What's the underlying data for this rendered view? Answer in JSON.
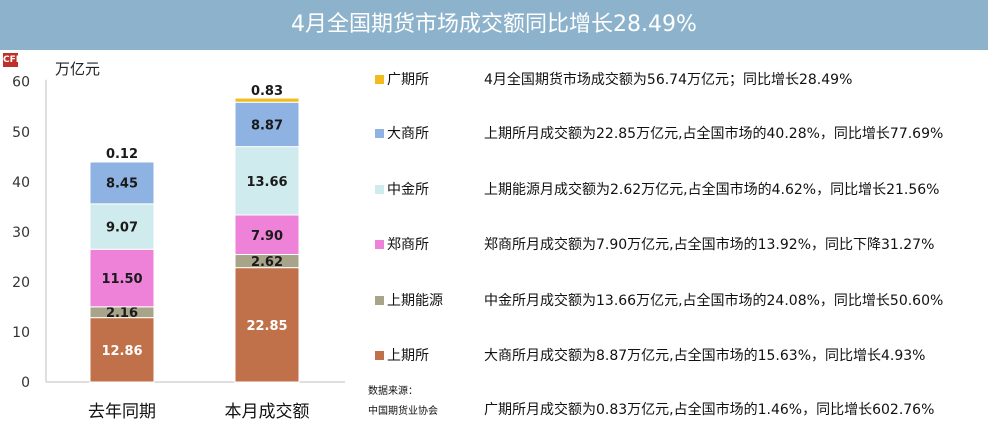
{
  "title": "4月全国期货市场成交额同比增长28.49%",
  "logo_text": "CFI",
  "unit": "万亿元",
  "source": {
    "line1": "数据来源：",
    "line2": "中国期货业协会"
  },
  "notes": [
    "4月全国期货市场成交额为56.74万亿元；同比增长28.49%",
    "上期所月成交额为22.85万亿元,占全国市场的40.28%，同比增长77.69%",
    "上期能源月成交额为2.62万亿元,占全国市场的4.62%，同比增长21.56%",
    "郑商所月成交额为7.90万亿元,占全国市场的13.92%，同比下降31.27%",
    "中金所月成交额为13.66万亿元,占全国市场的24.08%，同比增长50.60%",
    "大商所月成交额为8.87万亿元,占全国市场的15.63%，同比增长4.93%",
    "广期所月成交额为0.83万亿元,占全国市场的1.46%，同比增长602.76%"
  ],
  "chart_data": {
    "type": "bar",
    "stacked": true,
    "categories": [
      "去年同期",
      "本月成交额"
    ],
    "ylabel": "万亿元",
    "ylim": [
      0,
      60
    ],
    "yticks": [
      0,
      10,
      20,
      30,
      40,
      50,
      60
    ],
    "grid": false,
    "legend_position": "right",
    "series": [
      {
        "name": "上期所",
        "values": [
          12.86,
          22.85
        ],
        "color": "#c0714a",
        "label_color": "#ffffff"
      },
      {
        "name": "上期能源",
        "values": [
          2.16,
          2.62
        ],
        "color": "#a8a48a",
        "label_color": "#1a1a1a"
      },
      {
        "name": "郑商所",
        "values": [
          11.5,
          7.9
        ],
        "color": "#ee82d8",
        "label_color": "#1a1a1a"
      },
      {
        "name": "中金所",
        "values": [
          9.07,
          13.66
        ],
        "color": "#d0ebee",
        "label_color": "#1a1a1a"
      },
      {
        "name": "大商所",
        "values": [
          8.45,
          8.87
        ],
        "color": "#8eb3e2",
        "label_color": "#1a1a1a"
      },
      {
        "name": "广期所",
        "values": [
          0.12,
          0.83
        ],
        "color": "#f2bb1e",
        "label_color": "#1a1a1a"
      }
    ],
    "data_labels": [
      [
        "12.86",
        "22.85"
      ],
      [
        "2.16",
        "2.62"
      ],
      [
        "11.50",
        "7.90"
      ],
      [
        "9.07",
        "13.66"
      ],
      [
        "8.45",
        "8.87"
      ],
      [
        "0.12",
        "0.83"
      ]
    ],
    "legend_order": [
      "广期所",
      "大商所",
      "中金所",
      "郑商所",
      "上期能源",
      "上期所"
    ]
  }
}
